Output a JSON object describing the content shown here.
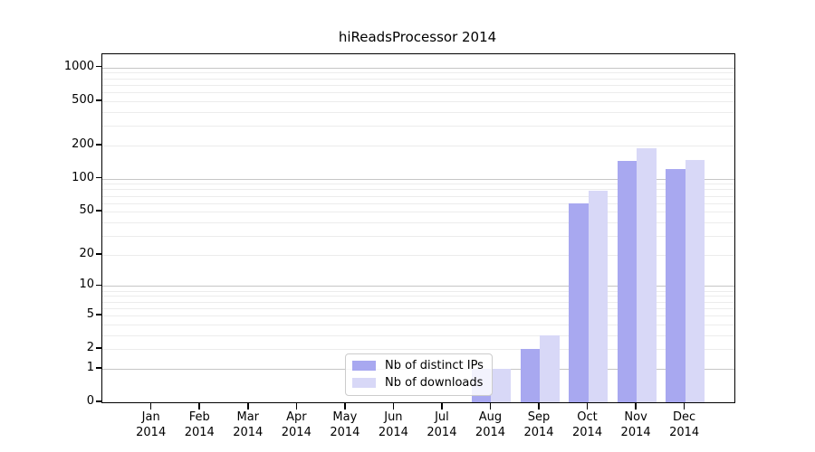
{
  "title": "hiReadsProcessor 2014",
  "chart_data": {
    "type": "bar",
    "title": "hiReadsProcessor 2014",
    "categories": [
      "Jan 2014",
      "Feb 2014",
      "Mar 2014",
      "Apr 2014",
      "May 2014",
      "Jun 2014",
      "Jul 2014",
      "Aug 2014",
      "Sep 2014",
      "Oct 2014",
      "Nov 2014",
      "Dec 2014"
    ],
    "series": [
      {
        "name": "Nb of distinct IPs",
        "color": "#a8a8f0",
        "values": [
          0,
          0,
          0,
          0,
          0,
          0,
          0,
          1,
          2,
          60,
          145,
          122
        ]
      },
      {
        "name": "Nb of downloads",
        "color": "#d8d8f7",
        "values": [
          0,
          0,
          0,
          0,
          0,
          0,
          0,
          1,
          3,
          77,
          189,
          148
        ]
      }
    ],
    "xlabel": "",
    "ylabel": "",
    "yscale": "log1p",
    "yticks": [
      0,
      1,
      2,
      5,
      10,
      20,
      50,
      100,
      200,
      500,
      1000
    ],
    "ylim": [
      0,
      1320
    ],
    "grid": "horizontal, major at powers of ten, faint minors 2-9 per decade",
    "legend_position": "inside bottom-center"
  }
}
